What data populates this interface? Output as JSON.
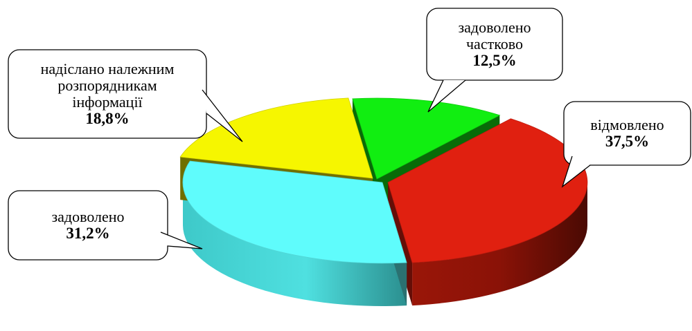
{
  "chart_data": {
    "type": "pie",
    "title": "",
    "style": "3d-exploded",
    "slices": [
      {
        "label": [
          "задоволено",
          "частково"
        ],
        "value": 12.5,
        "value_text": "12,5%",
        "color": "#11ee11"
      },
      {
        "label": [
          "відмовлено"
        ],
        "value": 37.5,
        "value_text": "37,5%",
        "color": "#e02010"
      },
      {
        "label": [
          "задоволено"
        ],
        "value": 31.2,
        "value_text": "31,2%",
        "color": "#5ffcfc"
      },
      {
        "label": [
          "надіслано належним",
          "розпорядникам",
          "інформації"
        ],
        "value": 18.8,
        "value_text": "18,8%",
        "color": "#f6f600"
      }
    ]
  }
}
